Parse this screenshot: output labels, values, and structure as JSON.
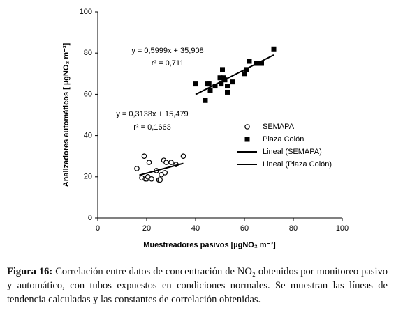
{
  "chart_data": {
    "type": "scatter",
    "x_label": "Muestreadores pasivos [µgNO₂ m⁻³]",
    "y_label": "Analizadores automáticos [ µgNO₂ m⁻³]",
    "xlim": [
      0,
      100
    ],
    "ylim": [
      0,
      100
    ],
    "xticks": [
      0,
      20,
      40,
      60,
      80,
      100
    ],
    "yticks": [
      0,
      20,
      40,
      60,
      80,
      100
    ],
    "series": [
      {
        "name": "SEMAPA",
        "mark": "circle",
        "color": "#000000",
        "x": [
          16,
          18,
          19,
          19.5,
          20,
          20.5,
          21,
          22,
          24,
          25,
          25.5,
          26,
          27,
          27.5,
          28,
          30,
          32,
          35
        ],
        "y": [
          24,
          19.5,
          30,
          19,
          19,
          20,
          27,
          19,
          23,
          18.5,
          18.5,
          21,
          28,
          22,
          27,
          27,
          26,
          30
        ]
      },
      {
        "name": "Plaza Colón",
        "mark": "square",
        "color": "#000000",
        "x": [
          40,
          44,
          45,
          45.5,
          46,
          48,
          50,
          50.5,
          51,
          51.5,
          52,
          53,
          53,
          55,
          60,
          61,
          62,
          65,
          67,
          72
        ],
        "y": [
          65,
          57,
          65,
          65,
          62,
          64,
          68,
          65,
          72,
          68,
          67,
          61,
          64,
          66,
          70,
          72,
          76,
          75,
          75,
          82
        ]
      },
      {
        "name": "Lineal (SEMAPA)",
        "mark": "line",
        "color": "#000000",
        "x": [
          17,
          35
        ],
        "y": [
          20.8,
          26.5
        ]
      },
      {
        "name": "Lineal (Plaza Colón)",
        "mark": "line",
        "color": "#000000",
        "x": [
          40,
          72
        ],
        "y": [
          59.9,
          79.1
        ]
      }
    ],
    "annotations": [
      "y = 0,5999x + 35,908",
      "r² = 0,711",
      "y = 0,3138x + 15,479",
      "r² = 0,1663"
    ]
  },
  "caption": {
    "label": "Figura 16:",
    "text": "Correlación entre datos de concentración de NO₂ obtenidos por monitoreo pasivo y automático, con tubos expuestos en condiciones normales. Se muestran las líneas de tendencia calculadas y las constantes de correlación obtenidas."
  }
}
